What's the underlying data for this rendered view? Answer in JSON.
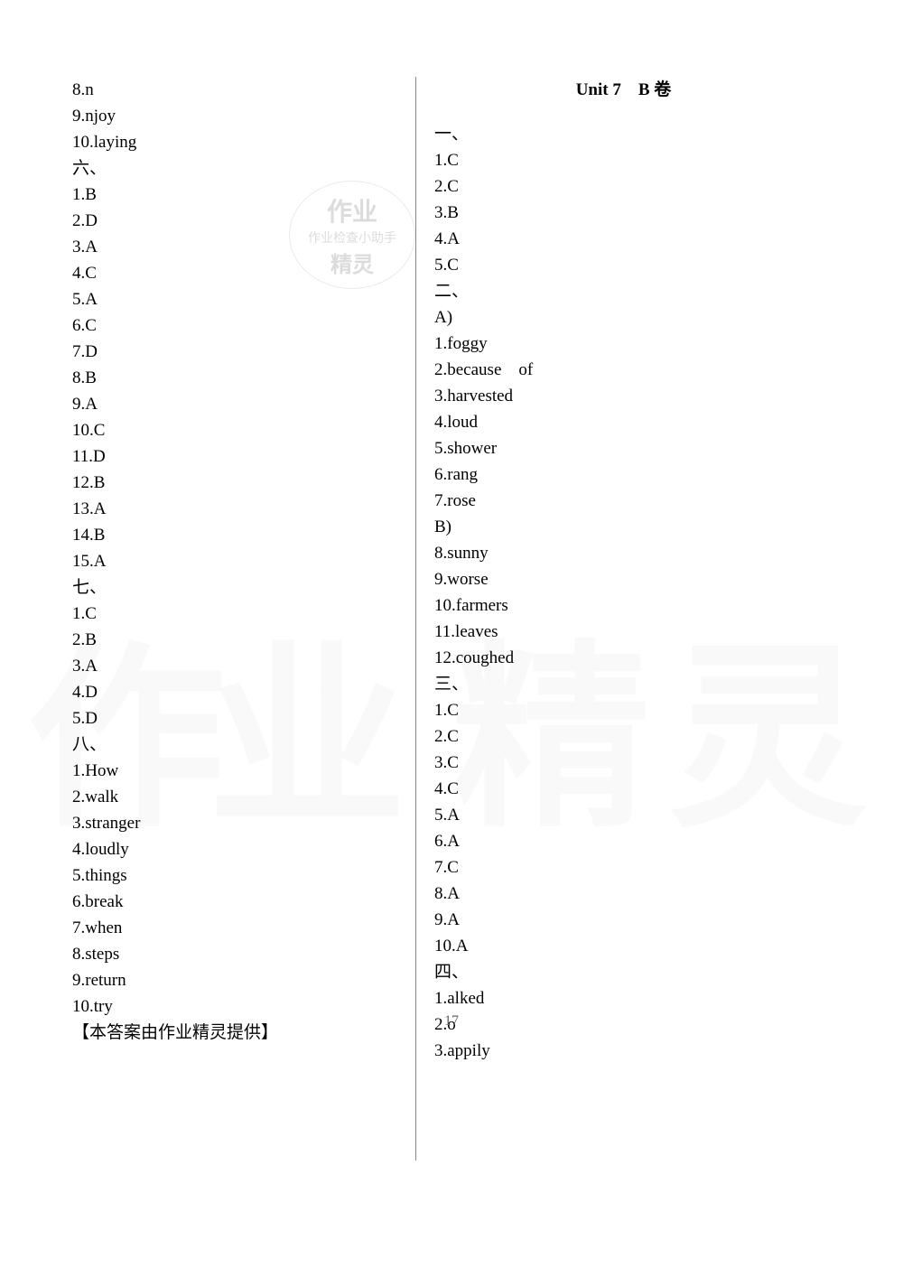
{
  "page_number": "17",
  "right_heading": "Unit 7　B 卷",
  "watermark_stamp": {
    "top": "作业",
    "middle": "作业检查小助手",
    "bottom": "精灵"
  },
  "big_watermark": [
    "作",
    "业",
    "精",
    "灵"
  ],
  "left_lines": [
    "8.n",
    "9.njoy",
    "10.laying",
    "六、",
    "1.B",
    "2.D",
    "3.A",
    "4.C",
    "5.A",
    "6.C",
    "7.D",
    "8.B",
    "9.A",
    "10.C",
    "11.D",
    "12.B",
    "13.A",
    "14.B",
    "15.A",
    "七、",
    "1.C",
    "2.B",
    "3.A",
    "4.D",
    "5.D",
    "八、",
    "1.How",
    "2.walk",
    "3.stranger",
    "4.loudly",
    "5.things",
    "6.break",
    "7.when",
    "8.steps",
    "9.return",
    "10.try",
    "【本答案由作业精灵提供】"
  ],
  "right_lines": [
    "一、",
    "1.C",
    "2.C",
    "3.B",
    "4.A",
    "5.C",
    "二、",
    "A)",
    "1.foggy",
    "2.because　of",
    "3.harvested",
    "4.loud",
    "5.shower",
    "6.rang",
    "7.rose",
    "B)",
    "8.sunny",
    "9.worse",
    "10.farmers",
    "11.leaves",
    "12.coughed",
    "三、",
    "1.C",
    "2.C",
    "3.C",
    "4.C",
    "5.A",
    "6.A",
    "7.C",
    "8.A",
    "9.A",
    "10.A",
    "四、",
    "1.alked",
    "2.o",
    "3.appily"
  ]
}
